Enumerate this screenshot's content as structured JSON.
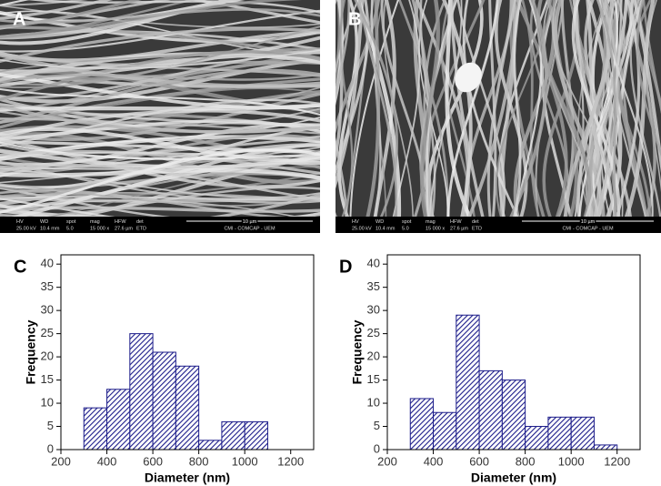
{
  "images": [
    {
      "label": "A",
      "info": [
        {
          "header": "HV",
          "value": "25.00 kV"
        },
        {
          "header": "WD",
          "value": "10.4 mm"
        },
        {
          "header": "spot",
          "value": "5.0"
        },
        {
          "header": "mag",
          "value": "15 000 x"
        },
        {
          "header": "HFW",
          "value": "27.6 µm"
        },
        {
          "header": "det",
          "value": "ETD"
        }
      ],
      "scale": "10 µm",
      "facility": "CMI - COMCAP - UEM"
    },
    {
      "label": "B",
      "info": [
        {
          "header": "HV",
          "value": "25.00 kV"
        },
        {
          "header": "WD",
          "value": "10.4 mm"
        },
        {
          "header": "spot",
          "value": "5.0"
        },
        {
          "header": "mag",
          "value": "15 000 x"
        },
        {
          "header": "HFW",
          "value": "27.6 µm"
        },
        {
          "header": "det",
          "value": "ETD"
        }
      ],
      "scale": "10 µm",
      "facility": "CMI - COMCAP - UEM"
    }
  ],
  "chart_data": [
    {
      "type": "histogram",
      "label": "C",
      "xlabel": "Diameter (nm)",
      "ylabel": "Frequency",
      "color": "#1c1c8a",
      "bins": [
        300,
        400,
        500,
        600,
        700,
        800,
        900,
        1000,
        1100
      ],
      "values": [
        9,
        13,
        25,
        21,
        18,
        2,
        6,
        6
      ],
      "xlim": [
        200,
        1300
      ],
      "xticks": [
        200,
        400,
        600,
        800,
        1000,
        1200
      ],
      "ylim": [
        0,
        42
      ],
      "yticks": [
        0,
        5,
        10,
        15,
        20,
        25,
        30,
        35,
        40
      ]
    },
    {
      "type": "histogram",
      "label": "D",
      "xlabel": "Diameter (nm)",
      "ylabel": "Frequency",
      "color": "#1c1c8a",
      "bins": [
        300,
        400,
        500,
        600,
        700,
        800,
        900,
        1000,
        1100,
        1200
      ],
      "values": [
        11,
        8,
        29,
        17,
        15,
        5,
        7,
        7,
        1
      ],
      "xlim": [
        200,
        1300
      ],
      "xticks": [
        200,
        400,
        600,
        800,
        1000,
        1200
      ],
      "ylim": [
        0,
        42
      ],
      "yticks": [
        0,
        5,
        10,
        15,
        20,
        25,
        30,
        35,
        40
      ]
    }
  ]
}
